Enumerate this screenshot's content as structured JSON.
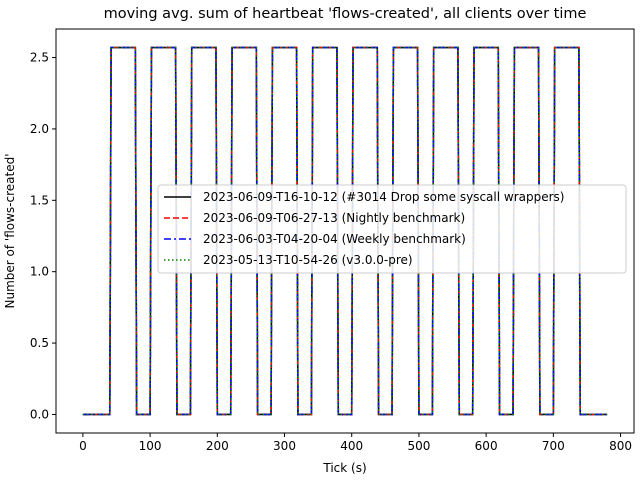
{
  "chart_data": {
    "type": "line",
    "title": "moving avg. sum of heartbeat 'flows-created', all clients over time",
    "xlabel": "Tick (s)",
    "ylabel": "Number of 'flows-created'",
    "xlim": [
      -40,
      820
    ],
    "ylim": [
      -0.13,
      2.7
    ],
    "x_ticks": [
      0,
      100,
      200,
      300,
      400,
      500,
      600,
      700,
      800
    ],
    "y_ticks": [
      0.0,
      0.5,
      1.0,
      1.5,
      2.0,
      2.5
    ],
    "x_tick_labels": [
      "0",
      "100",
      "200",
      "300",
      "400",
      "500",
      "600",
      "700",
      "800"
    ],
    "y_tick_labels": [
      "0.0",
      "0.5",
      "1.0",
      "1.5",
      "2.0",
      "2.5"
    ],
    "grid": false,
    "legend_position": "center-right",
    "x": [
      0,
      40,
      42,
      78,
      80,
      100,
      102,
      138,
      140,
      160,
      162,
      198,
      200,
      220,
      222,
      258,
      260,
      280,
      282,
      318,
      320,
      340,
      342,
      378,
      380,
      400,
      402,
      438,
      440,
      460,
      462,
      498,
      500,
      520,
      522,
      558,
      560,
      580,
      582,
      618,
      620,
      640,
      642,
      678,
      680,
      700,
      702,
      738,
      740,
      780
    ],
    "series": [
      {
        "name": "2023-06-09-T16-10-12 (#3014 Drop some syscall wrappers)",
        "color": "#000000",
        "dash": "solid",
        "values": [
          0,
          0,
          2.57,
          2.57,
          0,
          0,
          2.57,
          2.57,
          0,
          0,
          2.57,
          2.57,
          0,
          0,
          2.57,
          2.57,
          0,
          0,
          2.57,
          2.57,
          0,
          0,
          2.57,
          2.57,
          0,
          0,
          2.57,
          2.57,
          0,
          0,
          2.57,
          2.57,
          0,
          0,
          2.57,
          2.57,
          0,
          0,
          2.57,
          2.57,
          0,
          0,
          2.57,
          2.57,
          0,
          0,
          2.57,
          2.57,
          0,
          0
        ]
      },
      {
        "name": "2023-06-09-T06-27-13 (Nightly benchmark)",
        "color": "#ff0000",
        "dash": "dashed",
        "values": [
          0,
          0,
          2.57,
          2.57,
          0,
          0,
          2.57,
          2.57,
          0,
          0,
          2.57,
          2.57,
          0,
          0,
          2.57,
          2.57,
          0,
          0,
          2.57,
          2.57,
          0,
          0,
          2.57,
          2.57,
          0,
          0,
          2.57,
          2.57,
          0,
          0,
          2.57,
          2.57,
          0,
          0,
          2.57,
          2.57,
          0,
          0,
          2.57,
          2.57,
          0,
          0,
          2.57,
          2.57,
          0,
          0,
          2.57,
          2.57,
          0,
          0
        ]
      },
      {
        "name": "2023-06-03-T04-20-04 (Weekly benchmark)",
        "color": "#0000ff",
        "dash": "dashdot",
        "values": [
          0,
          0,
          2.57,
          2.57,
          0,
          0,
          2.57,
          2.57,
          0,
          0,
          2.57,
          2.57,
          0,
          0,
          2.57,
          2.57,
          0,
          0,
          2.57,
          2.57,
          0,
          0,
          2.57,
          2.57,
          0,
          0,
          2.57,
          2.57,
          0,
          0,
          2.57,
          2.57,
          0,
          0,
          2.57,
          2.57,
          0,
          0,
          2.57,
          2.57,
          0,
          0,
          2.57,
          2.57,
          0,
          0,
          2.57,
          2.57,
          0,
          0
        ]
      },
      {
        "name": "2023-05-13-T10-54-26 (v3.0.0-pre)",
        "color": "#008000",
        "dash": "dotted",
        "values": [
          0,
          0,
          2.57,
          2.57,
          0,
          0,
          2.57,
          2.57,
          0,
          0,
          2.57,
          2.57,
          0,
          0,
          2.57,
          2.57,
          0,
          0,
          2.57,
          2.57,
          0,
          0,
          2.57,
          2.57,
          0,
          0,
          2.57,
          2.57,
          0,
          0,
          2.57,
          2.57,
          0,
          0,
          2.57,
          2.57,
          0,
          0,
          2.57,
          2.57,
          0,
          0,
          2.57,
          2.57,
          0,
          0,
          2.57,
          2.57,
          0,
          0
        ]
      }
    ]
  }
}
